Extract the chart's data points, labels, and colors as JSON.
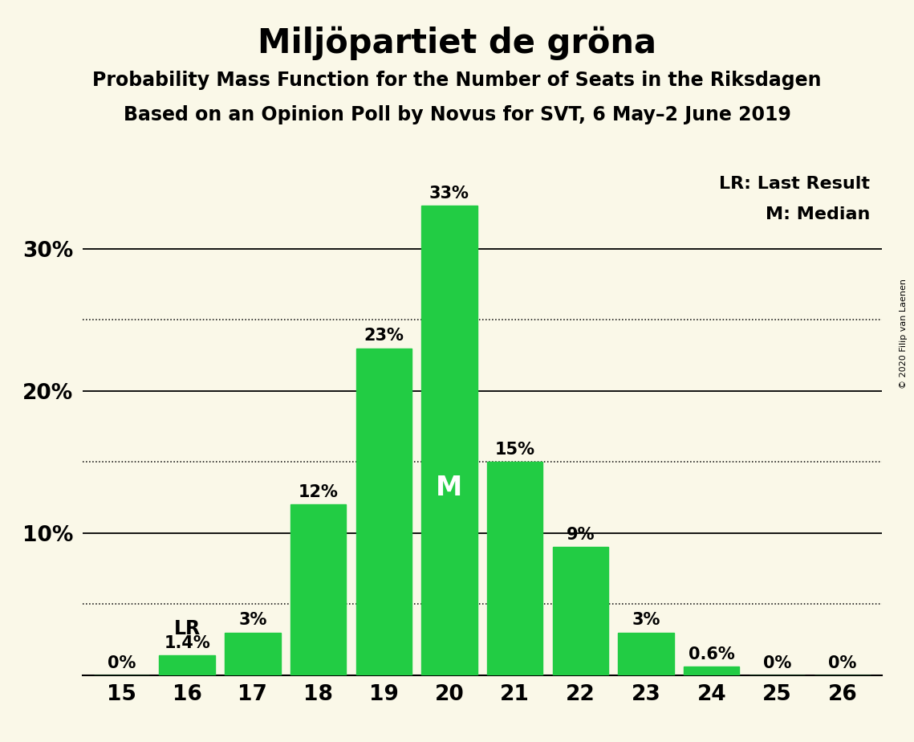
{
  "title": "Miljöpartiet de gröna",
  "subtitle1": "Probability Mass Function for the Number of Seats in the Riksdagen",
  "subtitle2": "Based on an Opinion Poll by Novus for SVT, 6 May–2 June 2019",
  "copyright": "© 2020 Filip van Laenen",
  "seats": [
    15,
    16,
    17,
    18,
    19,
    20,
    21,
    22,
    23,
    24,
    25,
    26
  ],
  "probabilities": [
    0.0,
    1.4,
    3.0,
    12.0,
    23.0,
    33.0,
    15.0,
    9.0,
    3.0,
    0.6,
    0.0,
    0.0
  ],
  "labels": [
    "0%",
    "1.4%",
    "3%",
    "12%",
    "23%",
    "33%",
    "15%",
    "9%",
    "3%",
    "0.6%",
    "0%",
    "0%"
  ],
  "bar_color": "#22cc44",
  "background_color": "#faf8e8",
  "median_seat": 20,
  "lr_seat": 16,
  "solid_yticks": [
    0,
    10,
    20,
    30
  ],
  "dotted_yticks": [
    5,
    15,
    25
  ],
  "ylim": [
    0,
    36
  ],
  "xlim": [
    14.4,
    26.6
  ],
  "title_fontsize": 30,
  "subtitle_fontsize": 17,
  "axis_fontsize": 19,
  "label_fontsize": 15,
  "legend_fontsize": 16,
  "lr_fontsize": 17,
  "m_fontsize": 24
}
